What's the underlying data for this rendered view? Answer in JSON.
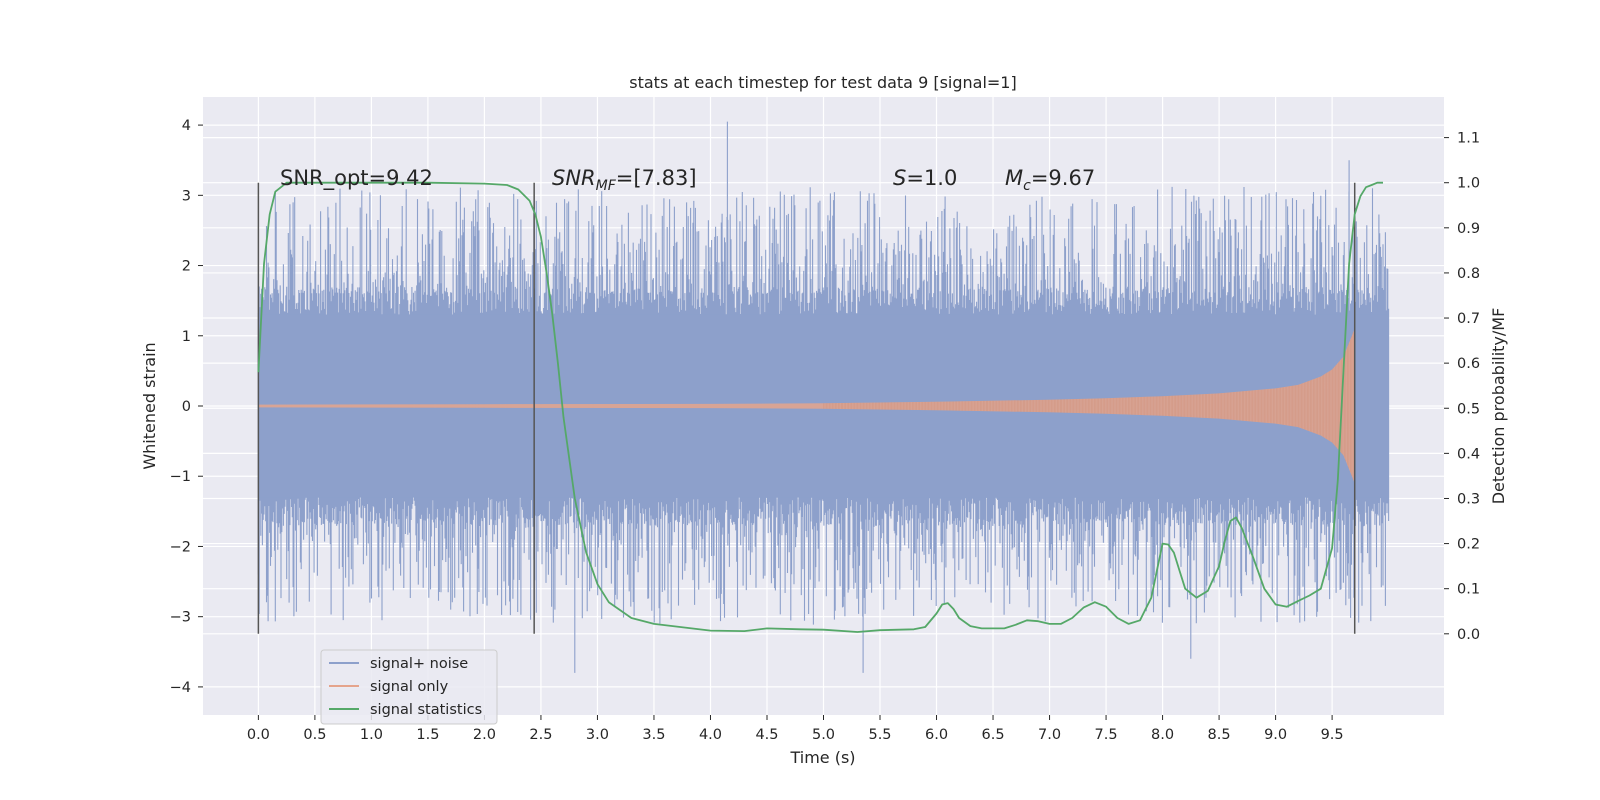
{
  "chart_data": {
    "type": "line",
    "title": "stats at each timestep for test data 9 [signal=1]",
    "xlabel": "Time (s)",
    "ylabel": "Whitened strain",
    "y2label": "Detection probability/MF",
    "xlim": [
      -0.49,
      10.49
    ],
    "ylim": [
      -4.4,
      4.4
    ],
    "y2lim": [
      -0.18,
      1.19
    ],
    "x_ticks": [
      "0.0",
      "0.5",
      "1.0",
      "1.5",
      "2.0",
      "2.5",
      "3.0",
      "3.5",
      "4.0",
      "4.5",
      "5.0",
      "5.5",
      "6.0",
      "6.5",
      "7.0",
      "7.5",
      "8.0",
      "8.5",
      "9.0",
      "9.5"
    ],
    "y_ticks": [
      "4",
      "3",
      "2",
      "1",
      "0",
      "−1",
      "−2",
      "−3",
      "−4"
    ],
    "y2_ticks": [
      "1.1",
      "1.0",
      "0.9",
      "0.8",
      "0.7",
      "0.6",
      "0.5",
      "0.4",
      "0.3",
      "0.2",
      "0.1",
      "0.0"
    ],
    "grid": true,
    "legend_position": "lower-left",
    "annotations": {
      "snr_opt": "SNR_opt=9.42",
      "snr_mf_base": "SNR",
      "snr_mf_sub": "MF",
      "snr_mf_value": "=[7.83]",
      "s_italic": "S",
      "s_value": "=1.0",
      "mc_base": "M",
      "mc_sub": "c",
      "mc_value": "=9.67"
    },
    "vertical_lines": [
      0.0,
      2.44,
      9.7
    ],
    "series": [
      {
        "name": "signal+ noise",
        "color": "#8da0cb",
        "envelope": {
          "t": [
            0.0,
            10.0
          ],
          "core_upper": 1.3,
          "core_lower": -1.3,
          "typical_spike_range": [
            1.6,
            3.5
          ],
          "extreme_points": [
            {
              "t": 4.15,
              "y": 4.05
            },
            {
              "t": 2.8,
              "y": -3.8
            },
            {
              "t": 5.35,
              "y": -3.8
            },
            {
              "t": 8.25,
              "y": -3.6
            },
            {
              "t": 9.65,
              "y": 3.5
            }
          ]
        }
      },
      {
        "name": "signal only",
        "color": "#e5a48c",
        "envelope_x": [
          0.0,
          2.0,
          4.0,
          5.0,
          6.0,
          7.0,
          7.5,
          8.0,
          8.5,
          9.0,
          9.2,
          9.4,
          9.5,
          9.6,
          9.65,
          9.7
        ],
        "envelope_amp": [
          0.02,
          0.025,
          0.03,
          0.04,
          0.06,
          0.09,
          0.11,
          0.14,
          0.18,
          0.25,
          0.3,
          0.42,
          0.52,
          0.7,
          0.9,
          1.1
        ]
      },
      {
        "name": "signal statistics",
        "color": "#55a868",
        "axis": "right",
        "x": [
          0.0,
          0.05,
          0.1,
          0.15,
          0.25,
          0.5,
          1.0,
          1.5,
          2.0,
          2.2,
          2.3,
          2.4,
          2.45,
          2.5,
          2.55,
          2.6,
          2.65,
          2.7,
          2.8,
          2.9,
          3.0,
          3.1,
          3.3,
          3.5,
          4.0,
          4.3,
          4.5,
          4.8,
          5.0,
          5.3,
          5.5,
          5.8,
          5.9,
          6.0,
          6.05,
          6.1,
          6.15,
          6.2,
          6.3,
          6.4,
          6.6,
          6.7,
          6.8,
          6.9,
          7.0,
          7.1,
          7.2,
          7.3,
          7.4,
          7.5,
          7.6,
          7.7,
          7.8,
          7.9,
          7.95,
          8.0,
          8.05,
          8.1,
          8.15,
          8.2,
          8.3,
          8.4,
          8.5,
          8.55,
          8.6,
          8.65,
          8.7,
          8.8,
          8.9,
          9.0,
          9.1,
          9.2,
          9.3,
          9.4,
          9.5,
          9.55,
          9.6,
          9.65,
          9.7,
          9.75,
          9.8,
          9.85,
          9.9,
          9.95
        ],
        "y": [
          0.58,
          0.82,
          0.93,
          0.98,
          1.0,
          1.0,
          1.0,
          1.0,
          0.998,
          0.995,
          0.985,
          0.96,
          0.93,
          0.88,
          0.8,
          0.71,
          0.6,
          0.48,
          0.3,
          0.18,
          0.11,
          0.07,
          0.035,
          0.022,
          0.007,
          0.006,
          0.012,
          0.01,
          0.009,
          0.004,
          0.008,
          0.01,
          0.015,
          0.045,
          0.065,
          0.068,
          0.055,
          0.035,
          0.017,
          0.012,
          0.012,
          0.02,
          0.03,
          0.028,
          0.022,
          0.022,
          0.035,
          0.058,
          0.07,
          0.06,
          0.035,
          0.022,
          0.03,
          0.08,
          0.14,
          0.2,
          0.198,
          0.18,
          0.14,
          0.1,
          0.08,
          0.095,
          0.15,
          0.205,
          0.25,
          0.258,
          0.235,
          0.17,
          0.1,
          0.065,
          0.06,
          0.073,
          0.085,
          0.1,
          0.19,
          0.34,
          0.58,
          0.82,
          0.93,
          0.97,
          0.99,
          0.995,
          1.0,
          1.0
        ]
      }
    ]
  }
}
